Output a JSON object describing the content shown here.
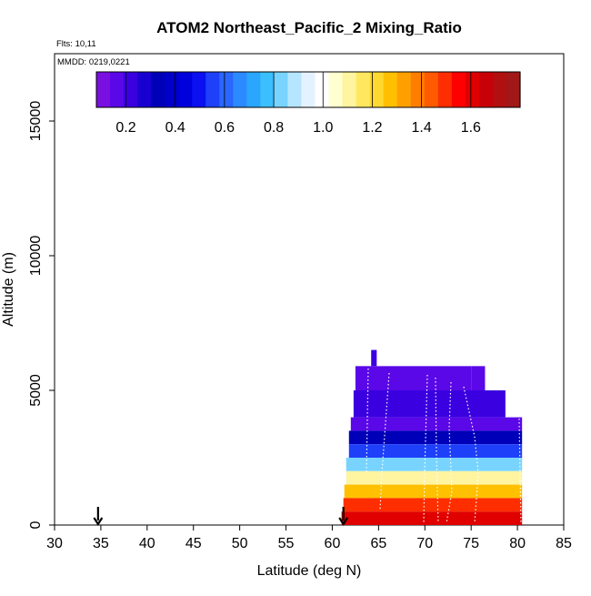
{
  "chart_data": {
    "type": "heatmap",
    "title": "ATOM2 Northeast_Pacific_2 Mixing_Ratio",
    "flights_label": "Flts: 10,11",
    "dates_label": "MMDD: 0219,0221",
    "xlabel": "Latitude (deg N)",
    "ylabel": "Altitude (m)",
    "xlim": [
      30,
      85
    ],
    "ylim": [
      0,
      17500
    ],
    "x_ticks": [
      30,
      35,
      40,
      45,
      50,
      55,
      60,
      65,
      70,
      75,
      80,
      85
    ],
    "y_ticks": [
      0,
      5000,
      10000,
      15000
    ],
    "colorbar": {
      "range": [
        0.08,
        1.8
      ],
      "ticks": [
        0.2,
        0.4,
        0.6,
        0.8,
        1.0,
        1.2,
        1.4,
        1.6
      ],
      "tick_labels": [
        "0.2",
        "0.4",
        "0.6",
        "0.8",
        "1.0",
        "1.2",
        "1.4",
        "1.6"
      ],
      "colors": [
        "#7a10e0",
        "#5a08e8",
        "#3a00e0",
        "#1800d0",
        "#0000b8",
        "#0000c8",
        "#0000dc",
        "#0a10f0",
        "#1e40f8",
        "#2a66ff",
        "#2b8aff",
        "#2aa6ff",
        "#3cbfff",
        "#78d4ff",
        "#b6e6ff",
        "#e4f2ff",
        "#ffffff",
        "#ffffd0",
        "#fff4a0",
        "#ffe860",
        "#ffd830",
        "#ffc000",
        "#ffa000",
        "#ff7e00",
        "#ff5a00",
        "#ff2e00",
        "#ff0000",
        "#e00000",
        "#c80008",
        "#b01010",
        "#a01818"
      ]
    },
    "profile_markers_lat": [
      34.7,
      61.2
    ],
    "cells": [
      {
        "lat": [
          64.2,
          64.8
        ],
        "alt": [
          5900,
          6500
        ],
        "value": 0.22
      },
      {
        "lat": [
          62.5,
          75
        ],
        "alt": [
          5000,
          5900
        ],
        "value": 0.15
      },
      {
        "lat": [
          75,
          76.5
        ],
        "alt": [
          5000,
          5900
        ],
        "value": 0.15
      },
      {
        "lat": [
          62.3,
          78.7
        ],
        "alt": [
          4000,
          5000
        ],
        "value": 0.2
      },
      {
        "lat": [
          62,
          80.5
        ],
        "alt": [
          3500,
          4000
        ],
        "value": 0.18
      },
      {
        "lat": [
          61.8,
          80.5
        ],
        "alt": [
          3000,
          3500
        ],
        "value": 0.35
      },
      {
        "lat": [
          61.8,
          80.5
        ],
        "alt": [
          2500,
          3000
        ],
        "value": 0.55
      },
      {
        "lat": [
          61.5,
          80.5
        ],
        "alt": [
          2000,
          2500
        ],
        "value": 0.85
      },
      {
        "lat": [
          61.5,
          80.5
        ],
        "alt": [
          1500,
          2000
        ],
        "value": 1.08
      },
      {
        "lat": [
          61.3,
          80.5
        ],
        "alt": [
          1000,
          1500
        ],
        "value": 1.3
      },
      {
        "lat": [
          61.2,
          80.5
        ],
        "alt": [
          500,
          1000
        ],
        "value": 1.5
      },
      {
        "lat": [
          61,
          80.5
        ],
        "alt": [
          0,
          500
        ],
        "value": 1.6
      }
    ]
  }
}
